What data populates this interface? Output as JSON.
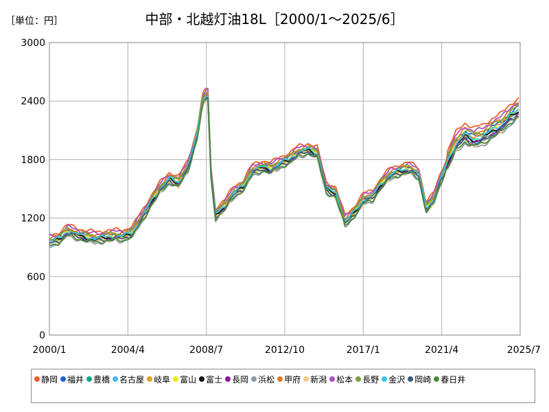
{
  "unit_label": "［単位：円］",
  "chart_data": {
    "type": "line",
    "title": "中部・北越灯油18L［2000/1～2025/6］",
    "unit": "円",
    "xlabel": "",
    "ylabel": "",
    "x_ticks": [
      "2000/1",
      "2004/4",
      "2008/7",
      "2012/10",
      "2017/1",
      "2021/4",
      "2025/7"
    ],
    "x_range": [
      2000.0,
      2025.5
    ],
    "y_ticks": [
      0,
      600,
      1200,
      1800,
      2400,
      3000
    ],
    "ylim": [
      0,
      3000
    ],
    "grid": true,
    "legend_position": "bottom",
    "envelope": {
      "x": [
        2000.0,
        2000.5,
        2001.0,
        2001.5,
        2002.0,
        2002.5,
        2003.0,
        2003.5,
        2004.0,
        2004.5,
        2005.0,
        2005.5,
        2006.0,
        2006.5,
        2007.0,
        2007.5,
        2008.0,
        2008.3,
        2008.58,
        2008.75,
        2009.0,
        2009.5,
        2010.0,
        2010.5,
        2011.0,
        2011.5,
        2012.0,
        2012.5,
        2013.0,
        2013.5,
        2014.0,
        2014.5,
        2015.0,
        2015.5,
        2016.0,
        2016.5,
        2017.0,
        2017.5,
        2018.0,
        2018.5,
        2019.0,
        2019.5,
        2020.0,
        2020.4,
        2020.8,
        2021.2,
        2021.6,
        2022.0,
        2022.5,
        2023.0,
        2023.5,
        2024.0,
        2024.5,
        2025.0,
        2025.4
      ],
      "y": [
        960,
        980,
        1060,
        1030,
        1000,
        990,
        1000,
        1010,
        1010,
        1050,
        1200,
        1360,
        1500,
        1600,
        1560,
        1720,
        2050,
        2400,
        2470,
        1650,
        1230,
        1320,
        1460,
        1520,
        1680,
        1720,
        1700,
        1760,
        1800,
        1870,
        1900,
        1860,
        1500,
        1450,
        1160,
        1250,
        1380,
        1420,
        1550,
        1650,
        1680,
        1700,
        1650,
        1300,
        1380,
        1600,
        1780,
        1950,
        2050,
        2000,
        2030,
        2100,
        2150,
        2250,
        2300
      ]
    },
    "series": [
      {
        "name": "静岡",
        "color": "#e8602c",
        "offset": 70
      },
      {
        "name": "福井",
        "color": "#1f5fd6",
        "offset": 20
      },
      {
        "name": "豊橋",
        "color": "#17a589",
        "offset": -10
      },
      {
        "name": "名古屋",
        "color": "#4fb6ef",
        "offset": -20
      },
      {
        "name": "岐阜",
        "color": "#e6a117",
        "offset": 10
      },
      {
        "name": "富山",
        "color": "#f5e614",
        "offset": 0
      },
      {
        "name": "富士",
        "color": "#111111",
        "offset": -5
      },
      {
        "name": "長岡",
        "color": "#8e1a9e",
        "offset": -15
      },
      {
        "name": "浜松",
        "color": "#8c9aa6",
        "offset": -45
      },
      {
        "name": "甲府",
        "color": "#e07a2a",
        "offset": 40
      },
      {
        "name": "新潟",
        "color": "#f2c98a",
        "offset": -30
      },
      {
        "name": "松本",
        "color": "#b04fbf",
        "offset": 50
      },
      {
        "name": "長野",
        "color": "#79a33a",
        "offset": 30
      },
      {
        "name": "金沢",
        "color": "#39c4e8",
        "offset": 5
      },
      {
        "name": "岡崎",
        "color": "#3c5c78",
        "offset": -25
      },
      {
        "name": "春日井",
        "color": "#4b8a3e",
        "offset": -35
      }
    ]
  }
}
